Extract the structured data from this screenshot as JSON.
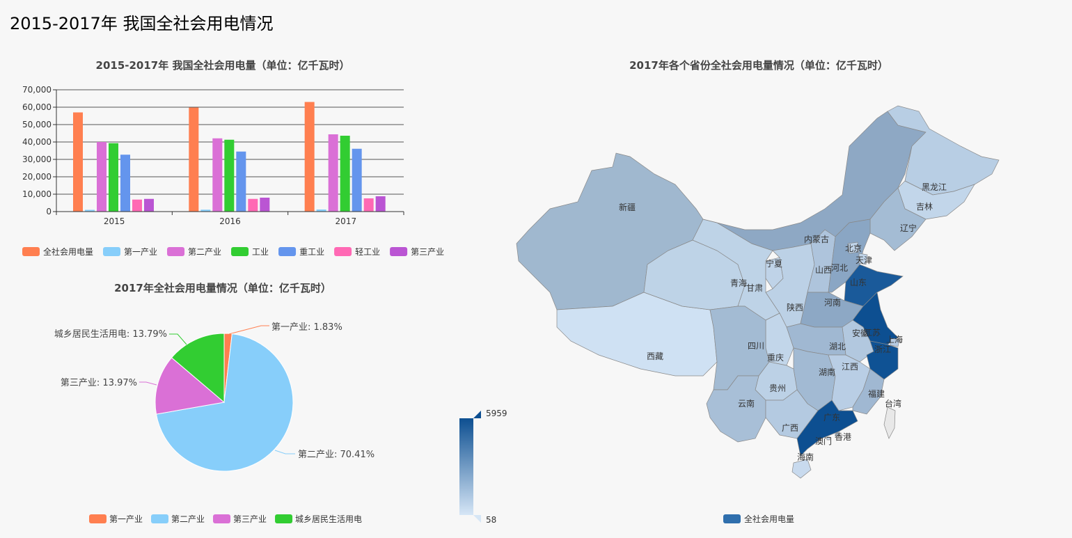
{
  "page_title": "2015-2017年 我国全社会用电情况",
  "chart_data": [
    {
      "type": "bar",
      "title": "2015-2017年 我国全社会用电量（单位：亿千瓦时）",
      "categories": [
        "2015",
        "2016",
        "2017"
      ],
      "ylim": [
        0,
        70000
      ],
      "yticks": [
        "0",
        "10,000",
        "20,000",
        "30,000",
        "40,000",
        "50,000",
        "60,000",
        "70,000"
      ],
      "grid": true,
      "legend_position": "bottom",
      "series": [
        {
          "name": "全社会用电量",
          "color": "#ff7f50",
          "values": [
            57000,
            59800,
            63000
          ]
        },
        {
          "name": "第一产业",
          "color": "#87cefa",
          "values": [
            1000,
            1100,
            1200
          ]
        },
        {
          "name": "第二产业",
          "color": "#da70d6",
          "values": [
            40000,
            42100,
            44400
          ]
        },
        {
          "name": "工业",
          "color": "#32cd32",
          "values": [
            39300,
            41300,
            43600
          ]
        },
        {
          "name": "重工业",
          "color": "#6495ed",
          "values": [
            32700,
            34500,
            36100
          ]
        },
        {
          "name": "轻工业",
          "color": "#ff69b4",
          "values": [
            6900,
            7300,
            7600
          ]
        },
        {
          "name": "第三产业",
          "color": "#ba55d3",
          "values": [
            7300,
            8000,
            8800
          ]
        }
      ]
    },
    {
      "type": "pie",
      "title": "2017年全社会用电量情况（单位：亿千瓦时）",
      "legend_position": "bottom",
      "slices": [
        {
          "name": "第一产业",
          "value": 1.83,
          "label": "第一产业: 1.83%",
          "color": "#ff7f50"
        },
        {
          "name": "第二产业",
          "value": 70.41,
          "label": "第二产业: 70.41%",
          "color": "#87cefa"
        },
        {
          "name": "第三产业",
          "value": 13.97,
          "label": "第三产业: 13.97%",
          "color": "#da70d6"
        },
        {
          "name": "城乡居民生活用电",
          "value": 13.79,
          "label": "城乡居民生活用电: 13.79%",
          "color": "#32cd32"
        }
      ]
    },
    {
      "type": "map",
      "title": "2017年各个省份全社会用电量情况（单位：亿千瓦时）",
      "series_name": "全社会用电量",
      "legend_color": "#2f6fad",
      "visual_map": {
        "max": "5959",
        "min": "58",
        "color_high": "#0d4f91",
        "color_low": "#d6e6f6"
      },
      "provinces": [
        {
          "name": "新疆",
          "color": "#a0b8cf"
        },
        {
          "name": "西藏",
          "color": "#cfe1f3"
        },
        {
          "name": "青海",
          "color": "#bed3e7"
        },
        {
          "name": "甘肃",
          "color": "#bed3e7"
        },
        {
          "name": "内蒙古",
          "color": "#8ea8c4"
        },
        {
          "name": "黑龙江",
          "color": "#b8cee4"
        },
        {
          "name": "吉林",
          "color": "#c2d6ea"
        },
        {
          "name": "辽宁",
          "color": "#a4bcd4"
        },
        {
          "name": "宁夏",
          "color": "#bfd3e8"
        },
        {
          "name": "陕西",
          "color": "#bcd1e6"
        },
        {
          "name": "山西",
          "color": "#aec4dc"
        },
        {
          "name": "河北",
          "color": "#8aa6c4"
        },
        {
          "name": "北京",
          "color": "#c0d4e9"
        },
        {
          "name": "天津",
          "color": "#c0d4e9"
        },
        {
          "name": "山东",
          "color": "#1a5a9a"
        },
        {
          "name": "河南",
          "color": "#8da8c5"
        },
        {
          "name": "江苏",
          "color": "#0d4f91"
        },
        {
          "name": "安徽",
          "color": "#b2c8df"
        },
        {
          "name": "上海",
          "color": "#b6cbe2"
        },
        {
          "name": "浙江",
          "color": "#0f5294"
        },
        {
          "name": "湖北",
          "color": "#a0b8d2"
        },
        {
          "name": "重庆",
          "color": "#c2d6ea"
        },
        {
          "name": "四川",
          "color": "#a3bbd3"
        },
        {
          "name": "湖南",
          "color": "#a2bad3"
        },
        {
          "name": "江西",
          "color": "#b9cee5"
        },
        {
          "name": "福建",
          "color": "#a0b8d2"
        },
        {
          "name": "贵州",
          "color": "#bcd1e6"
        },
        {
          "name": "云南",
          "color": "#a8bfd7"
        },
        {
          "name": "广西",
          "color": "#b4cae1"
        },
        {
          "name": "广东",
          "color": "#0d4f91"
        },
        {
          "name": "海南",
          "color": "#c8daee"
        },
        {
          "name": "台湾",
          "color": "#e8e8e8"
        },
        {
          "name": "香港",
          "color": "#c8daee"
        },
        {
          "name": "澳门",
          "color": "#c8daee"
        }
      ]
    }
  ]
}
